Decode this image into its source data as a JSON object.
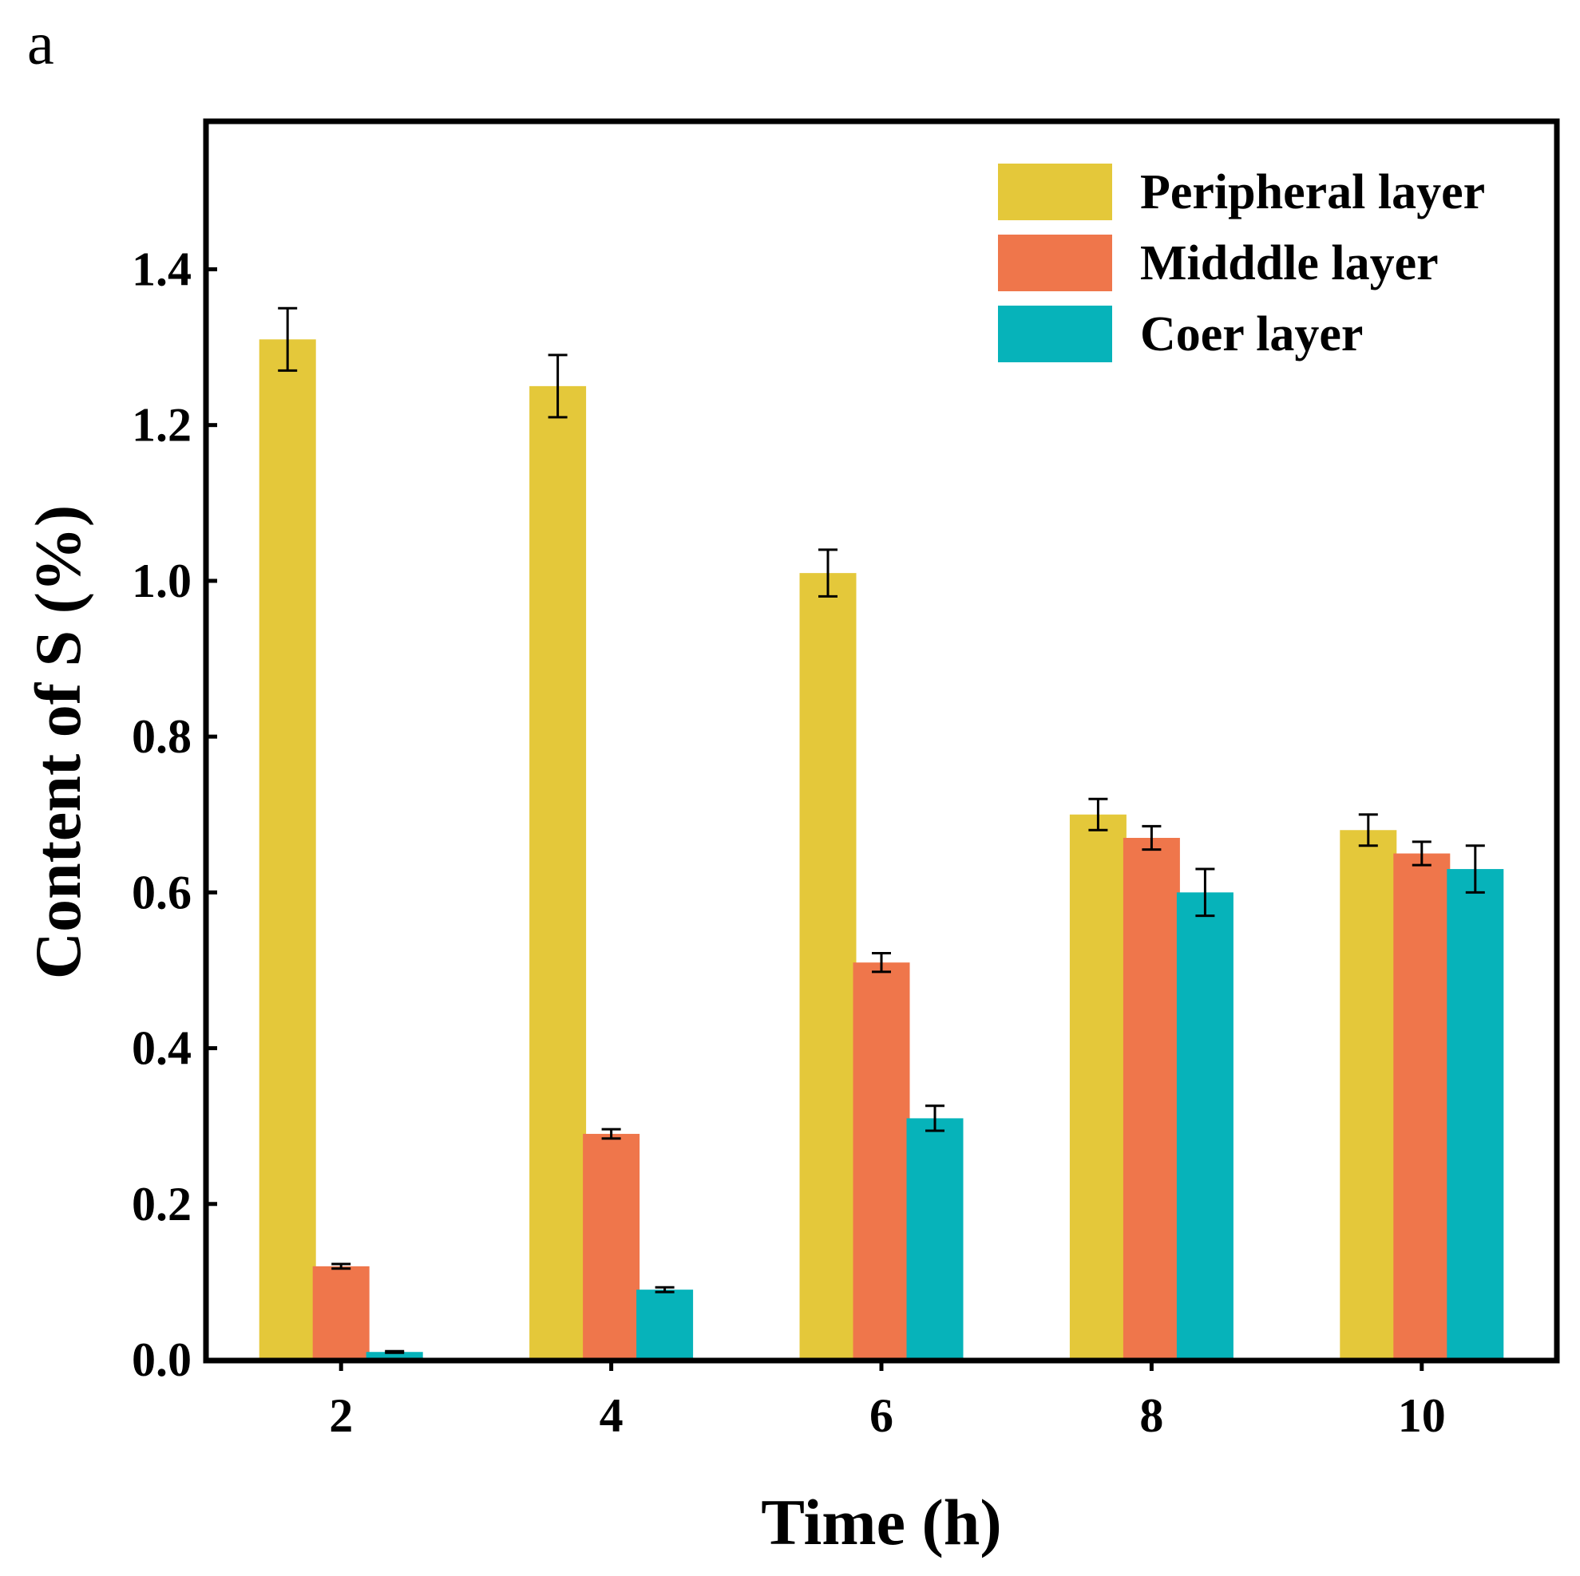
{
  "panel_label": "a",
  "chart_data": {
    "type": "bar",
    "title": "",
    "xlabel": "Time (h)",
    "ylabel": "Content of S (%)",
    "categories": [
      "2",
      "4",
      "6",
      "8",
      "10"
    ],
    "ylim": [
      0,
      1.59
    ],
    "yticks": [
      "0.0",
      "0.2",
      "0.4",
      "0.6",
      "0.8",
      "1.0",
      "1.2",
      "1.4"
    ],
    "legend_position": "top-right",
    "series": [
      {
        "name": "Peripheral layer",
        "color": "#E4C83A",
        "values": [
          1.31,
          1.25,
          1.01,
          0.7,
          0.68
        ],
        "errors": [
          0.04,
          0.04,
          0.03,
          0.02,
          0.02
        ]
      },
      {
        "name": "Midddle layer",
        "color": "#EF764B",
        "values": [
          0.12,
          0.29,
          0.51,
          0.67,
          0.65
        ],
        "errors": [
          0.003,
          0.006,
          0.012,
          0.015,
          0.015
        ]
      },
      {
        "name": "Coer layer",
        "color": "#06B3BA",
        "values": [
          0.01,
          0.09,
          0.31,
          0.6,
          0.63
        ],
        "errors": [
          0.001,
          0.003,
          0.016,
          0.03,
          0.03
        ]
      }
    ]
  }
}
